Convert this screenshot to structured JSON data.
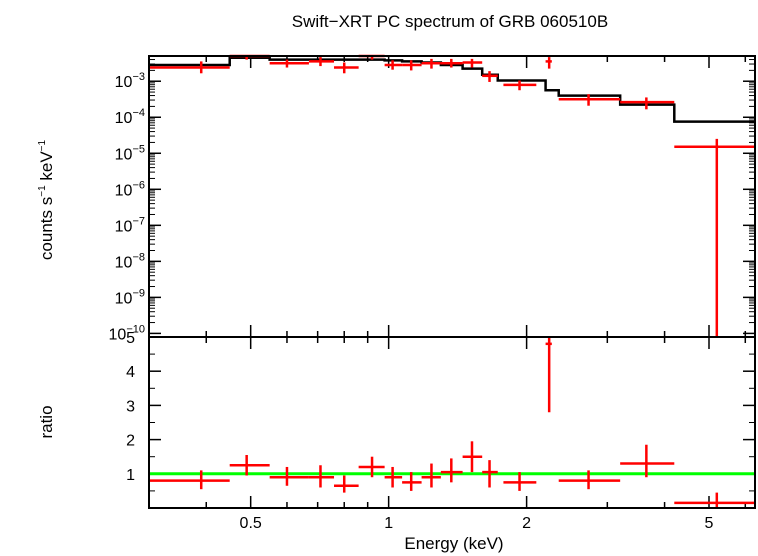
{
  "title": "Swift−XRT PC spectrum of GRB 060510B",
  "xlabel": "Energy (keV)",
  "colors": {
    "data": "#ff0000",
    "model": "#000000",
    "unity": "#00ff00",
    "axes": "#000000"
  },
  "chart_data": [
    {
      "type": "scatter",
      "panel": "spectrum",
      "ylabel_parts": [
        "counts s",
        "−1",
        " keV",
        "−1"
      ],
      "xscale": "log",
      "yscale": "log",
      "xlim": [
        0.3,
        6.3
      ],
      "ylim_exponent": [
        -10.1,
        -2.3
      ],
      "x_tick_labels": [],
      "y_ticks": [
        {
          "base": "10",
          "exp": "−3",
          "value": -3
        },
        {
          "base": "10",
          "exp": "−4",
          "value": -4
        },
        {
          "base": "10",
          "exp": "−5",
          "value": -5
        },
        {
          "base": "10",
          "exp": "−6",
          "value": -6
        },
        {
          "base": "10",
          "exp": "−7",
          "value": -7
        },
        {
          "base": "10",
          "exp": "−8",
          "value": -8
        },
        {
          "base": "10",
          "exp": "−9",
          "value": -9
        },
        {
          "base": "10",
          "exp": "−10",
          "value": -10
        }
      ],
      "series": [
        {
          "kind": "data",
          "points_log10": [
            {
              "x": 0.39,
              "xlo": 0.3,
              "xhi": 0.45,
              "y": -2.62,
              "ylo": -2.78,
              "yhi": -2.45
            },
            {
              "x": 0.49,
              "xlo": 0.45,
              "xhi": 0.55,
              "y": -2.28,
              "ylo": -2.4,
              "yhi": -2.18
            },
            {
              "x": 0.6,
              "xlo": 0.55,
              "xhi": 0.67,
              "y": -2.5,
              "ylo": -2.62,
              "yhi": -2.4
            },
            {
              "x": 0.71,
              "xlo": 0.67,
              "xhi": 0.76,
              "y": -2.45,
              "ylo": -2.58,
              "yhi": -2.33
            },
            {
              "x": 0.8,
              "xlo": 0.76,
              "xhi": 0.86,
              "y": -2.62,
              "ylo": -2.78,
              "yhi": -2.48
            },
            {
              "x": 0.92,
              "xlo": 0.86,
              "xhi": 0.98,
              "y": -2.28,
              "ylo": -2.4,
              "yhi": -2.18
            },
            {
              "x": 1.02,
              "xlo": 0.98,
              "xhi": 1.07,
              "y": -2.55,
              "ylo": -2.68,
              "yhi": -2.42
            },
            {
              "x": 1.12,
              "xlo": 1.07,
              "xhi": 1.18,
              "y": -2.55,
              "ylo": -2.7,
              "yhi": -2.42
            },
            {
              "x": 1.24,
              "xlo": 1.18,
              "xhi": 1.3,
              "y": -2.5,
              "ylo": -2.65,
              "yhi": -2.38
            },
            {
              "x": 1.37,
              "xlo": 1.3,
              "xhi": 1.45,
              "y": -2.5,
              "ylo": -2.62,
              "yhi": -2.38
            },
            {
              "x": 1.52,
              "xlo": 1.45,
              "xhi": 1.6,
              "y": -2.48,
              "ylo": -2.62,
              "yhi": -2.38
            },
            {
              "x": 1.66,
              "xlo": 1.6,
              "xhi": 1.73,
              "y": -2.85,
              "ylo": -3.02,
              "yhi": -2.72
            },
            {
              "x": 1.93,
              "xlo": 1.78,
              "xhi": 2.1,
              "y": -3.1,
              "ylo": -3.25,
              "yhi": -2.98
            },
            {
              "x": 2.24,
              "xlo": 2.2,
              "xhi": 2.27,
              "y": -2.45,
              "ylo": -2.65,
              "yhi": -2.33
            },
            {
              "x": 2.73,
              "xlo": 2.35,
              "xhi": 3.2,
              "y": -3.5,
              "ylo": -3.68,
              "yhi": -3.36
            },
            {
              "x": 3.65,
              "xlo": 3.2,
              "xhi": 4.2,
              "y": -3.58,
              "ylo": -3.78,
              "yhi": -3.45
            },
            {
              "x": 5.2,
              "xlo": 4.2,
              "xhi": 6.3,
              "y": -4.82,
              "ylo": -10.2,
              "yhi": -4.6
            }
          ]
        },
        {
          "kind": "model",
          "steps_log10": [
            {
              "x0": 0.3,
              "x1": 0.45,
              "y": -2.55
            },
            {
              "x0": 0.45,
              "x1": 0.55,
              "y": -2.35
            },
            {
              "x0": 0.55,
              "x1": 0.67,
              "y": -2.4
            },
            {
              "x0": 0.67,
              "x1": 0.76,
              "y": -2.4
            },
            {
              "x0": 0.76,
              "x1": 0.86,
              "y": -2.4
            },
            {
              "x0": 0.86,
              "x1": 0.98,
              "y": -2.4
            },
            {
              "x0": 0.98,
              "x1": 1.07,
              "y": -2.42
            },
            {
              "x0": 1.07,
              "x1": 1.18,
              "y": -2.45
            },
            {
              "x0": 1.18,
              "x1": 1.3,
              "y": -2.48
            },
            {
              "x0": 1.3,
              "x1": 1.45,
              "y": -2.55
            },
            {
              "x0": 1.45,
              "x1": 1.6,
              "y": -2.65
            },
            {
              "x0": 1.6,
              "x1": 1.73,
              "y": -2.82
            },
            {
              "x0": 1.73,
              "x1": 1.78,
              "y": -2.98
            },
            {
              "x0": 1.78,
              "x1": 2.2,
              "y": -2.98
            },
            {
              "x0": 2.2,
              "x1": 2.35,
              "y": -3.25
            },
            {
              "x0": 2.35,
              "x1": 3.2,
              "y": -3.4
            },
            {
              "x0": 3.2,
              "x1": 4.2,
              "y": -3.65
            },
            {
              "x0": 4.2,
              "x1": 6.3,
              "y": -4.12
            }
          ]
        }
      ]
    },
    {
      "type": "scatter",
      "panel": "ratio",
      "ylabel": "ratio",
      "xscale": "log",
      "xlim": [
        0.3,
        6.3
      ],
      "ylim": [
        0,
        5
      ],
      "x_ticks": [
        {
          "label": "0.5",
          "value": 0.5
        },
        {
          "label": "1",
          "value": 1
        },
        {
          "label": "2",
          "value": 2
        },
        {
          "label": "5",
          "value": 5
        }
      ],
      "y_ticks": [
        {
          "label": "1",
          "value": 1
        },
        {
          "label": "2",
          "value": 2
        },
        {
          "label": "3",
          "value": 3
        },
        {
          "label": "4",
          "value": 4
        },
        {
          "label": "5",
          "value": 5
        }
      ],
      "unity_line": 1,
      "points": [
        {
          "x": 0.39,
          "xlo": 0.3,
          "xhi": 0.45,
          "y": 0.8,
          "ylo": 0.55,
          "yhi": 1.1
        },
        {
          "x": 0.49,
          "xlo": 0.45,
          "xhi": 0.55,
          "y": 1.25,
          "ylo": 0.95,
          "yhi": 1.55
        },
        {
          "x": 0.6,
          "xlo": 0.55,
          "xhi": 0.67,
          "y": 0.9,
          "ylo": 0.65,
          "yhi": 1.2
        },
        {
          "x": 0.71,
          "xlo": 0.67,
          "xhi": 0.76,
          "y": 0.9,
          "ylo": 0.6,
          "yhi": 1.25
        },
        {
          "x": 0.8,
          "xlo": 0.76,
          "xhi": 0.86,
          "y": 0.65,
          "ylo": 0.45,
          "yhi": 0.95
        },
        {
          "x": 0.92,
          "xlo": 0.86,
          "xhi": 0.98,
          "y": 1.2,
          "ylo": 0.9,
          "yhi": 1.5
        },
        {
          "x": 1.02,
          "xlo": 0.98,
          "xhi": 1.07,
          "y": 0.9,
          "ylo": 0.6,
          "yhi": 1.2
        },
        {
          "x": 1.12,
          "xlo": 1.07,
          "xhi": 1.18,
          "y": 0.75,
          "ylo": 0.5,
          "yhi": 1.05
        },
        {
          "x": 1.24,
          "xlo": 1.18,
          "xhi": 1.3,
          "y": 0.9,
          "ylo": 0.6,
          "yhi": 1.3
        },
        {
          "x": 1.37,
          "xlo": 1.3,
          "xhi": 1.45,
          "y": 1.05,
          "ylo": 0.75,
          "yhi": 1.45
        },
        {
          "x": 1.52,
          "xlo": 1.45,
          "xhi": 1.6,
          "y": 1.5,
          "ylo": 1.05,
          "yhi": 1.95
        },
        {
          "x": 1.66,
          "xlo": 1.6,
          "xhi": 1.73,
          "y": 1.05,
          "ylo": 0.6,
          "yhi": 1.4
        },
        {
          "x": 1.93,
          "xlo": 1.78,
          "xhi": 2.1,
          "y": 0.75,
          "ylo": 0.5,
          "yhi": 1.05
        },
        {
          "x": 2.24,
          "xlo": 2.2,
          "xhi": 2.27,
          "y": 4.8,
          "ylo": 2.8,
          "yhi": 5.0
        },
        {
          "x": 2.73,
          "xlo": 2.35,
          "xhi": 3.2,
          "y": 0.8,
          "ylo": 0.55,
          "yhi": 1.1
        },
        {
          "x": 3.65,
          "xlo": 3.2,
          "xhi": 4.2,
          "y": 1.3,
          "ylo": 0.9,
          "yhi": 1.85
        },
        {
          "x": 5.2,
          "xlo": 4.2,
          "xhi": 6.3,
          "y": 0.15,
          "ylo": 0.0,
          "yhi": 0.45
        }
      ]
    }
  ]
}
